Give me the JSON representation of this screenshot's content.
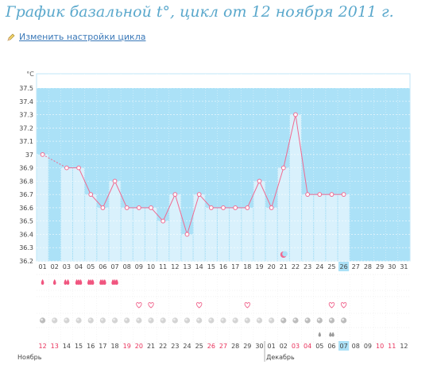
{
  "page": {
    "title": "График базальной t°, цикл от 12 ноября 2011 г.",
    "settings_link": "Изменить настройки цикла",
    "icons": {
      "settings": "pencil-icon",
      "moon": "moon-icon",
      "blood": "blood-drop-icon",
      "heart": "heart-icon",
      "circle": "grey-circle-icon",
      "drop": "drop-icon"
    }
  },
  "chart_data": {
    "type": "line",
    "ylabel": "°C",
    "ylim": [
      36.2,
      37.5
    ],
    "yticks": [
      "36.2",
      "36.3",
      "36.4",
      "36.5",
      "36.6",
      "36.7",
      "36.8",
      "36.9",
      "37",
      "37.1",
      "37.2",
      "37.3",
      "37.4",
      "37.5"
    ],
    "cycle_days": [
      "01",
      "02",
      "03",
      "04",
      "05",
      "06",
      "07",
      "08",
      "09",
      "10",
      "11",
      "12",
      "13",
      "14",
      "15",
      "16",
      "17",
      "18",
      "19",
      "20",
      "21",
      "22",
      "23",
      "24",
      "25",
      "26",
      "27",
      "28",
      "29",
      "30",
      "31"
    ],
    "current_day": "26",
    "temperatures": [
      37.0,
      null,
      36.9,
      36.9,
      36.7,
      36.6,
      36.8,
      36.6,
      36.6,
      36.6,
      36.5,
      36.7,
      36.4,
      36.7,
      36.6,
      36.6,
      36.6,
      36.6,
      36.8,
      36.6,
      36.9,
      37.3,
      36.7,
      36.7,
      36.7,
      36.7,
      null,
      null,
      null,
      null,
      null
    ],
    "moon_day": "21",
    "menstruation": {
      "days": [
        "01",
        "02",
        "03",
        "04",
        "05",
        "06",
        "07"
      ],
      "levels": [
        1,
        1,
        2,
        3,
        3,
        3,
        3
      ]
    },
    "hearts": [
      "09",
      "10",
      "14",
      "18",
      "25",
      "26"
    ],
    "circles": [
      "01",
      "02",
      "03",
      "04",
      "05",
      "06",
      "07",
      "08",
      "09",
      "10",
      "11",
      "12",
      "13",
      "14",
      "15",
      "16",
      "17",
      "18",
      "19",
      "20",
      "21",
      "22",
      "23",
      "24",
      "25",
      "26"
    ],
    "circles_dim": [
      "02",
      "03",
      "04",
      "05",
      "06",
      "07",
      "08",
      "09",
      "10",
      "11",
      "12",
      "13",
      "14",
      "15",
      "16",
      "17",
      "18",
      "19",
      "20"
    ],
    "drops": [
      "24",
      "25"
    ],
    "calendar_dates": [
      "12",
      "13",
      "14",
      "15",
      "16",
      "17",
      "18",
      "19",
      "20",
      "21",
      "22",
      "23",
      "24",
      "25",
      "26",
      "27",
      "28",
      "29",
      "30",
      "01",
      "02",
      "03",
      "04",
      "05",
      "06",
      "07",
      "08",
      "09",
      "10",
      "11",
      "12"
    ],
    "weekend_dates_idx": [
      0,
      1,
      7,
      8,
      14,
      15,
      21,
      22,
      28,
      29
    ],
    "today_idx": 25,
    "months": [
      {
        "label": "Ноябрь",
        "start_idx": 0
      },
      {
        "label": "Декабрь",
        "start_idx": 19
      }
    ],
    "colors": {
      "follicular": "#d6f0fc",
      "luteal": "#abe1f7",
      "bar": "#d9f1fc",
      "line": "#f06a91",
      "today": "#abe1f7",
      "weekend": "#e8305a",
      "heart": "#f06a91"
    }
  }
}
